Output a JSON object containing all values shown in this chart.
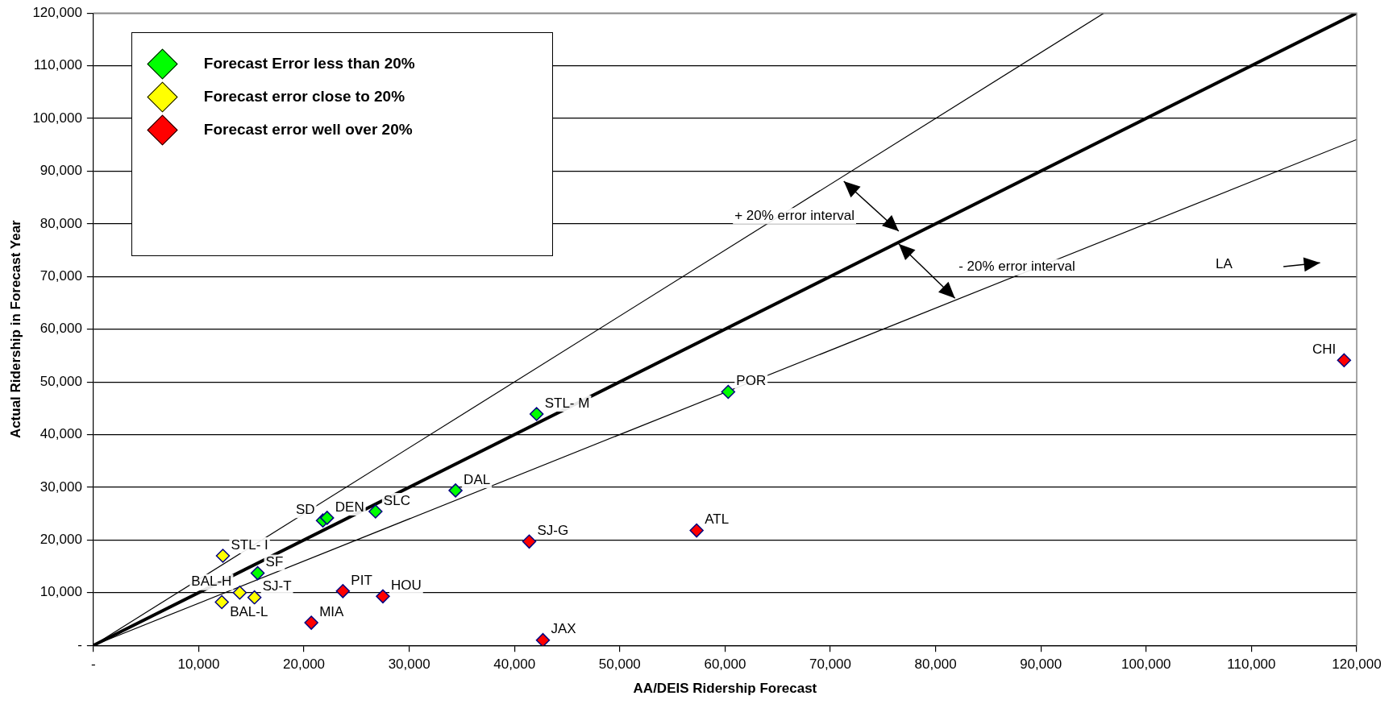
{
  "chart_data": {
    "type": "scatter",
    "xlabel": "AA/DEIS Ridership Forecast",
    "ylabel": "Actual Ridership in Forecast Year",
    "xlim": [
      0,
      120000
    ],
    "ylim": [
      0,
      120000
    ],
    "xticks": [
      {
        "value": 0,
        "label": "-"
      },
      {
        "value": 10000,
        "label": "10,000"
      },
      {
        "value": 20000,
        "label": "20,000"
      },
      {
        "value": 30000,
        "label": "30,000"
      },
      {
        "value": 40000,
        "label": "40,000"
      },
      {
        "value": 50000,
        "label": "50,000"
      },
      {
        "value": 60000,
        "label": "60,000"
      },
      {
        "value": 70000,
        "label": "70,000"
      },
      {
        "value": 80000,
        "label": "80,000"
      },
      {
        "value": 90000,
        "label": "90,000"
      },
      {
        "value": 100000,
        "label": "100,000"
      },
      {
        "value": 110000,
        "label": "110,000"
      },
      {
        "value": 120000,
        "label": "120,000"
      }
    ],
    "yticks": [
      {
        "value": 0,
        "label": "-"
      },
      {
        "value": 10000,
        "label": "10,000"
      },
      {
        "value": 20000,
        "label": "20,000"
      },
      {
        "value": 30000,
        "label": "30,000"
      },
      {
        "value": 40000,
        "label": "40,000"
      },
      {
        "value": 50000,
        "label": "50,000"
      },
      {
        "value": 60000,
        "label": "60,000"
      },
      {
        "value": 70000,
        "label": "70,000"
      },
      {
        "value": 80000,
        "label": "80,000"
      },
      {
        "value": 90000,
        "label": "90,000"
      },
      {
        "value": 100000,
        "label": "100,000"
      },
      {
        "value": 110000,
        "label": "110,000"
      },
      {
        "value": 120000,
        "label": "120,000"
      }
    ],
    "grid": "y",
    "legend": "top left",
    "marker": "diamond",
    "series": [
      {
        "type": "line",
        "color": "#000000",
        "marker": "none",
        "x": [
          0,
          96000
        ],
        "values": [
          0,
          120000
        ]
      },
      {
        "type": "line",
        "color": "#000000",
        "marker": "none",
        "x": [
          0,
          120000
        ],
        "values": [
          0,
          120000
        ]
      },
      {
        "type": "line",
        "color": "#000000",
        "marker": "none",
        "x": [
          0,
          120000
        ],
        "values": [
          0,
          96000
        ]
      },
      {
        "name": "Forecast Error less than 20%",
        "color": "#00ff00",
        "x": [
          15600,
          21800,
          22200,
          26800,
          34400,
          42100,
          60300
        ],
        "values": [
          13700,
          23700,
          24200,
          25400,
          29400,
          43900,
          48100
        ],
        "value_labels": [
          "SF",
          "SD",
          "DEN",
          "SLC",
          "DAL",
          "STL- M",
          "POR"
        ]
      },
      {
        "name": "Forecast error close to 20%",
        "color": "#ffff00",
        "x": [
          12300,
          13900,
          15300,
          12200
        ],
        "values": [
          17000,
          10000,
          9100,
          8200
        ],
        "value_labels": [
          "STL- I",
          "BAL-H",
          "SJ-T",
          "BAL-L"
        ]
      },
      {
        "name": "Forecast error well over 20%",
        "color": "#ff0000",
        "x": [
          20700,
          23700,
          27500,
          41400,
          42700,
          57300,
          118800
        ],
        "values": [
          4300,
          10300,
          9300,
          19700,
          1000,
          21800,
          54100
        ],
        "value_labels": [
          "MIA",
          "PIT",
          "HOU",
          "SJ-G",
          "JAX",
          "ATL",
          "CHI"
        ]
      }
    ],
    "annotations": [
      "+ 20% error interval",
      "- 20% error interval",
      "LA"
    ]
  }
}
